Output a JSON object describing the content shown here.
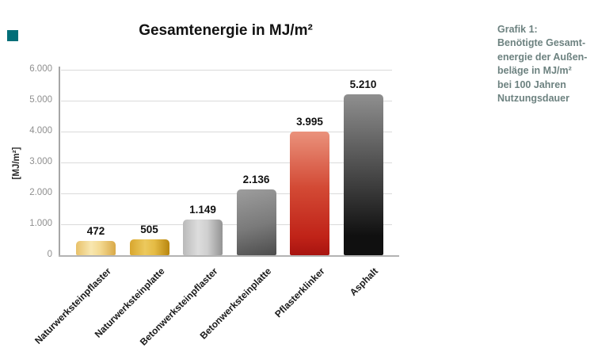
{
  "page": {
    "background": "#ffffff",
    "accent_teal": "#006e78"
  },
  "figure_marker": {
    "color": "#006e78"
  },
  "caption": {
    "color": "#6d8280",
    "text": "Grafik 1:\nBenötigte Gesamt-\nenergie der Außen-\nbeläge in MJ/m²\nbei 100 Jahren\nNutzungsdauer"
  },
  "chart_data": {
    "type": "bar",
    "title": "Gesamtenergie in MJ/m²",
    "xlabel": "",
    "ylabel": "[MJ/m²]",
    "categories": [
      "Naturwerksteinpflaster",
      "Naturwerksteinplatte",
      "Betonwerksteinpflaster",
      "Betonwerksteinplatte",
      "Pflasterklinker",
      "Asphalt"
    ],
    "values": [
      472,
      505,
      1149,
      2136,
      3995,
      5210
    ],
    "value_labels": [
      "472",
      "505",
      "1.149",
      "2.136",
      "3.995",
      "5.210"
    ],
    "bar_colors": [
      "#edc878",
      "#d9a32a",
      "#bdbdbd",
      "#6f6f6f",
      "#c0281c",
      "#1a1a1a"
    ],
    "ylim": [
      0,
      6000
    ],
    "yticks": [
      {
        "value": 0,
        "label": "0"
      },
      {
        "value": 1000,
        "label": "1.000"
      },
      {
        "value": 2000,
        "label": "2.000"
      },
      {
        "value": 3000,
        "label": "3.000"
      },
      {
        "value": 4000,
        "label": "4.000"
      },
      {
        "value": 5000,
        "label": "5.000"
      },
      {
        "value": 6000,
        "label": "6.000"
      }
    ],
    "grid": true,
    "legend": false,
    "annotation": "Grafik 1: Benötigte Gesamtenergie der Außenbeläge in MJ/m² bei 100 Jahren Nutzungsdauer"
  }
}
